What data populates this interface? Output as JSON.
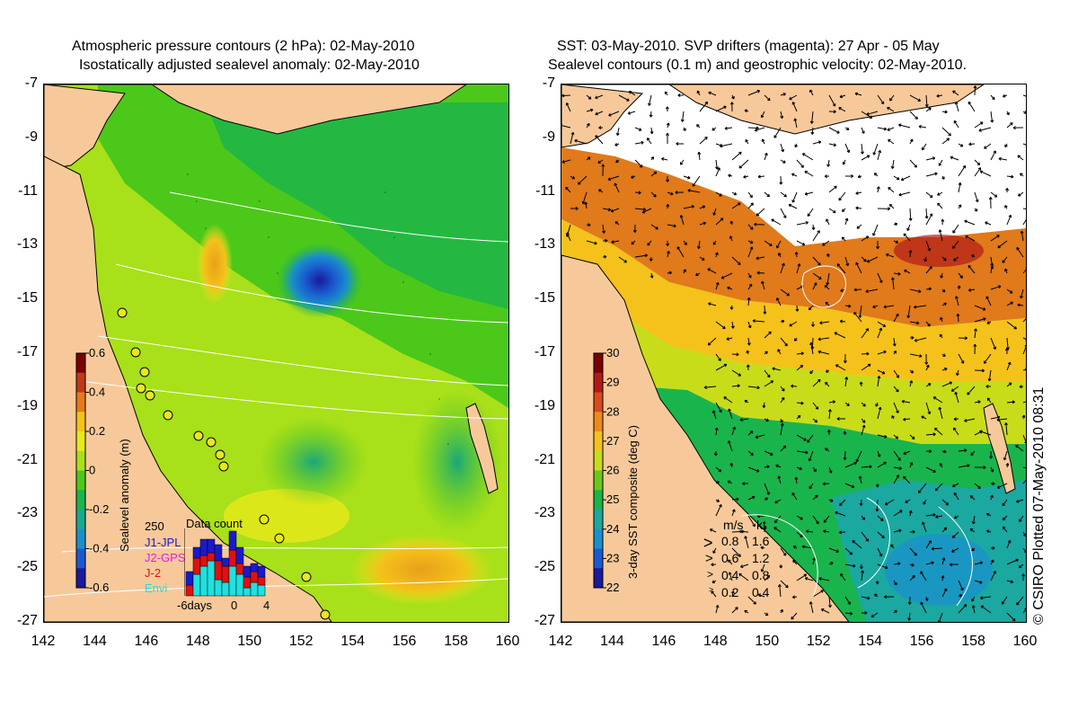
{
  "left_panel": {
    "title_line1": "Atmospheric pressure contours (2 hPa): 02-May-2010",
    "title_line2": "Isostatically adjusted sealevel anomaly: 02-May-2010",
    "colorbar": {
      "label": "Sealevel anomaly (m)",
      "ticks": [
        "0.6",
        "0.4",
        "0.2",
        "0",
        "-0.2",
        "-0.4",
        "-0.6"
      ],
      "colors": [
        "#7a0000",
        "#c0381a",
        "#e87a1a",
        "#f4c21a",
        "#e8e81a",
        "#a8e01a",
        "#4cc81a",
        "#1ab44c",
        "#1aa890",
        "#1a90c8",
        "#1a5ad0",
        "#1a1a9a"
      ]
    },
    "data_count": {
      "title": "Data count",
      "max_label": "250",
      "series": [
        {
          "name": "J1-JPL",
          "color": "#1a1acc"
        },
        {
          "name": "J2-GPS",
          "color": "#e020e0"
        },
        {
          "name": "J-2",
          "color": "#e01010"
        },
        {
          "name": "Envi",
          "color": "#20e0e0"
        }
      ],
      "x_labels": [
        "-6days",
        "0",
        "4"
      ],
      "bars": [
        {
          "J1-JPL": 50,
          "J-2": 40,
          "Envi": 0
        },
        {
          "J1-JPL": 40,
          "J-2": 60,
          "Envi": 80
        },
        {
          "J1-JPL": 60,
          "J-2": 40,
          "Envi": 110
        },
        {
          "J1-JPL": 50,
          "J-2": 30,
          "Envi": 130
        },
        {
          "J1-JPL": 60,
          "J-2": 70,
          "Envi": 60
        },
        {
          "J1-JPL": 30,
          "J-2": 60,
          "Envi": 50
        },
        {
          "J1-JPL": 70,
          "J-2": 60,
          "Envi": 110
        },
        {
          "J1-JPL": 60,
          "J-2": 40,
          "Envi": 80
        },
        {
          "J1-JPL": 40,
          "J-2": 40,
          "Envi": 30
        },
        {
          "J1-JPL": 30,
          "J-2": 40,
          "Envi": 50
        },
        {
          "J1-JPL": 40,
          "J-2": 30,
          "Envi": 40
        }
      ]
    }
  },
  "right_panel": {
    "title_line1": "SST: 03-May-2010. SVP drifters (magenta): 27 Apr - 05 May",
    "title_line2": "Sealevel contours (0.1 m) and geostrophic velocity: 02-May-2010.",
    "colorbar": {
      "label": "3-day SST composite (deg C)",
      "ticks": [
        "30",
        "29",
        "28",
        "27",
        "26",
        "25",
        "24",
        "23",
        "22"
      ],
      "colors": [
        "#7a0000",
        "#b01a1a",
        "#d84a1a",
        "#ec8a1a",
        "#f4c21a",
        "#c8dc1a",
        "#6ac81a",
        "#1ab44c",
        "#1aa8a0",
        "#1a90d0",
        "#1a5ad0",
        "#1a1a9a"
      ]
    },
    "velocity_legend": {
      "header_ms": "m/s",
      "header_kt": "kt",
      "rows": [
        {
          "ms": "0.8",
          "kt": "1.6"
        },
        {
          "ms": "0.6",
          "kt": "1.2"
        },
        {
          "ms": "0.4",
          "kt": "0.8"
        },
        {
          "ms": "0.2",
          "kt": "0.4"
        }
      ]
    },
    "credit": "© CSIRO Plotted 07-May-2010 08:31"
  },
  "axes": {
    "y_ticks": [
      "-7",
      "-9",
      "-11",
      "-13",
      "-15",
      "-17",
      "-19",
      "-21",
      "-23",
      "-25",
      "-27"
    ],
    "x_ticks": [
      "142",
      "144",
      "146",
      "148",
      "150",
      "152",
      "154",
      "156",
      "158",
      "160"
    ],
    "lat_range": [
      -27,
      -7
    ],
    "lon_range": [
      142,
      160
    ]
  },
  "colors": {
    "land": "#f7c99a",
    "sea_green": "#4cc81a",
    "sea_yellow": "#e8e81a",
    "sst_warm": "#e07a1a",
    "sst_cool": "#1aa8a0"
  }
}
